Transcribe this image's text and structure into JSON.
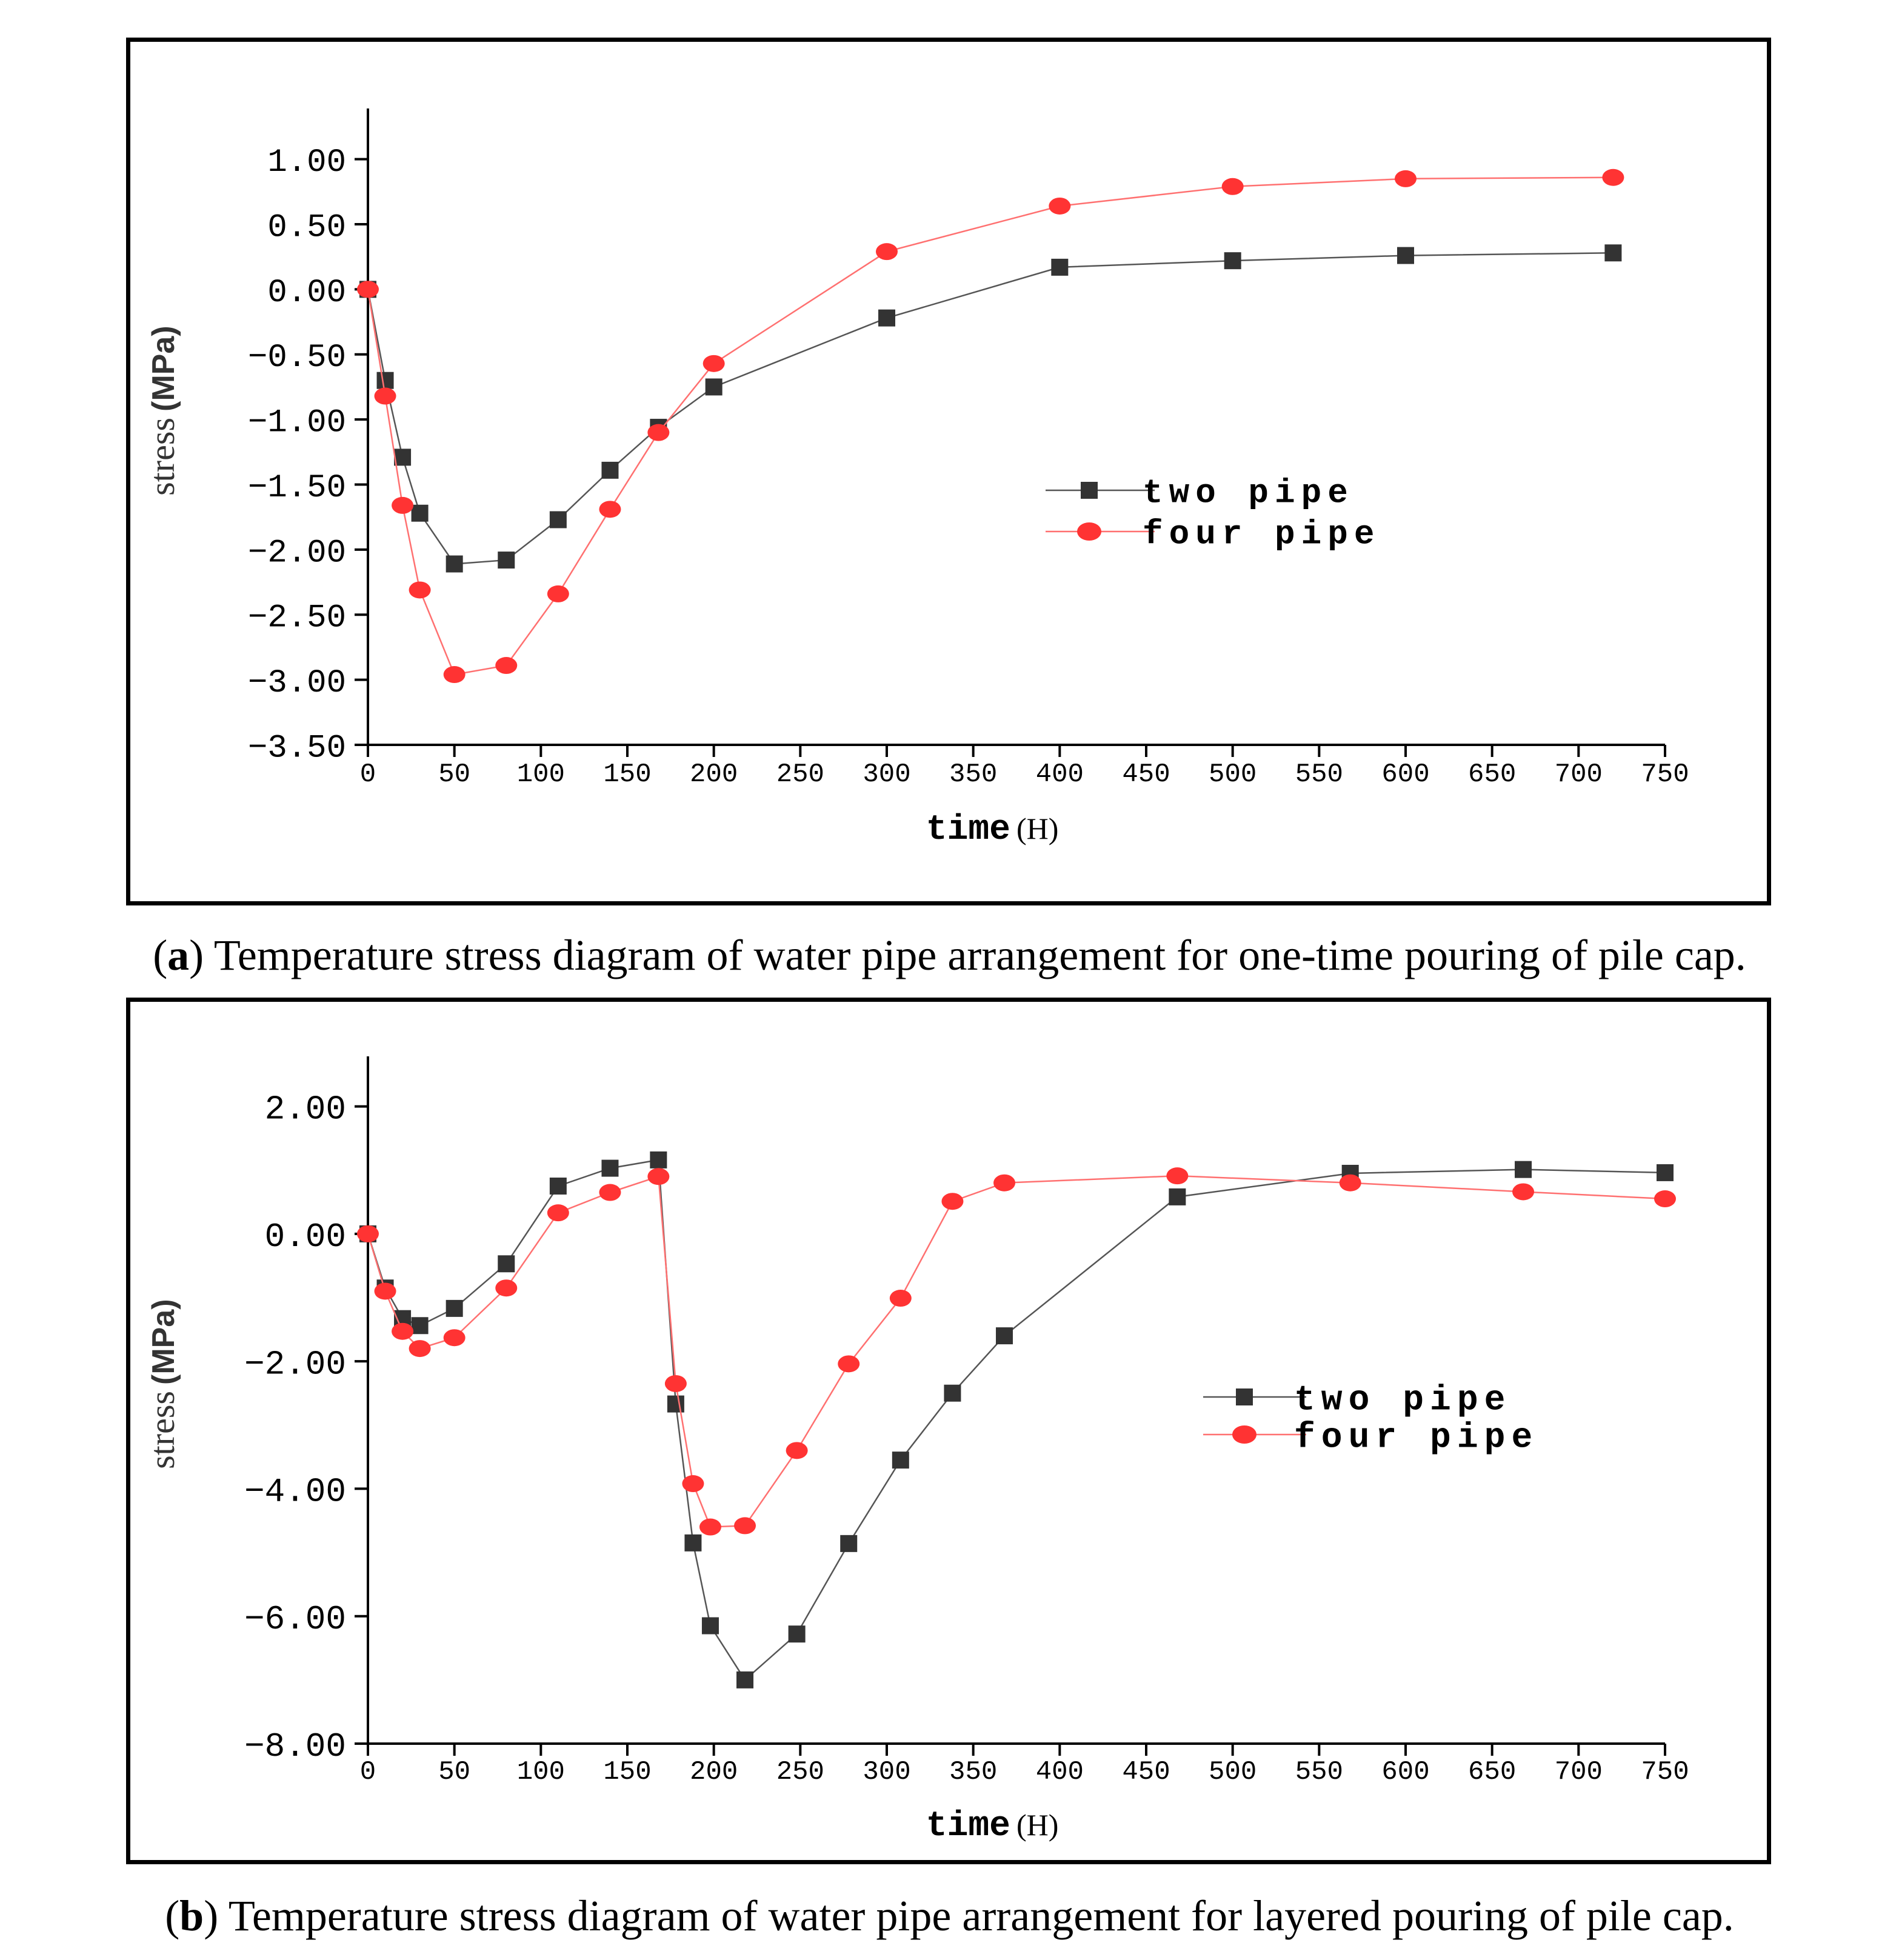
{
  "chart_data": [
    {
      "id": "a",
      "type": "line",
      "caption_label": "a",
      "caption_text": "Temperature stress diagram of water pipe arrangement for one-time pouring of pile cap.",
      "xlabel": "time",
      "xunit": "(H)",
      "ylabel": "stress",
      "yunit": "(MPa)",
      "xlim": [
        0,
        750
      ],
      "ylim": [
        -3.5,
        1.25
      ],
      "xticks": [
        0,
        50,
        100,
        150,
        200,
        250,
        300,
        350,
        400,
        450,
        500,
        550,
        600,
        650,
        700,
        750
      ],
      "yticks": [
        -3.5,
        -3.0,
        -2.5,
        -2.0,
        -1.5,
        -1.0,
        -0.5,
        0.0,
        0.5,
        1.0
      ],
      "xtick_labels": [
        "0",
        "50",
        "100",
        "150",
        "200",
        "250",
        "300",
        "350",
        "400",
        "450",
        "500",
        "550",
        "600",
        "650",
        "700",
        "750"
      ],
      "ytick_labels": [
        "−3.50",
        "−3.00",
        "−2.50",
        "−2.00",
        "−1.50",
        "−1.00",
        "−0.50",
        "0.00",
        "0.50",
        "1.00"
      ],
      "legend_position": "center-right",
      "series": [
        {
          "name": "two pipe",
          "color": "#555555",
          "marker_color": "#333333",
          "marker": "square",
          "x": [
            0,
            10,
            20,
            30,
            50,
            80,
            110,
            140,
            168,
            200,
            300,
            400,
            500,
            600,
            720
          ],
          "y": [
            0.0,
            -0.7,
            -1.29,
            -1.72,
            -2.11,
            -2.08,
            -1.77,
            -1.39,
            -1.06,
            -0.75,
            -0.22,
            0.17,
            0.22,
            0.26,
            0.28
          ]
        },
        {
          "name": "four pipe",
          "color": "#ff7070",
          "marker_color": "#ff3333",
          "marker": "circle",
          "x": [
            0,
            10,
            20,
            30,
            50,
            80,
            110,
            140,
            168,
            200,
            300,
            400,
            500,
            600,
            720
          ],
          "y": [
            0.0,
            -0.82,
            -1.66,
            -2.31,
            -2.96,
            -2.89,
            -2.34,
            -1.69,
            -1.1,
            -0.57,
            0.29,
            0.64,
            0.79,
            0.85,
            0.86
          ]
        }
      ]
    },
    {
      "id": "b",
      "type": "line",
      "caption_label": "b",
      "caption_text": "Temperature stress diagram of water pipe arrangement for layered pouring of pile cap.",
      "xlabel": "time",
      "xunit": "(H)",
      "ylabel": "stress",
      "yunit": "(MPa)",
      "xlim": [
        0,
        750
      ],
      "ylim": [
        -8.0,
        2.5
      ],
      "xticks": [
        0,
        50,
        100,
        150,
        200,
        250,
        300,
        350,
        400,
        450,
        500,
        550,
        600,
        650,
        700,
        750
      ],
      "yticks": [
        -8.0,
        -6.0,
        -4.0,
        -2.0,
        0.0,
        2.0
      ],
      "xtick_labels": [
        "0",
        "50",
        "100",
        "150",
        "200",
        "250",
        "300",
        "350",
        "400",
        "450",
        "500",
        "550",
        "600",
        "650",
        "700",
        "750"
      ],
      "ytick_labels": [
        "−8.00",
        "−6.00",
        "−4.00",
        "−2.00",
        "0.00",
        "2.00"
      ],
      "legend_position": "center-right",
      "series": [
        {
          "name": "two pipe",
          "color": "#555555",
          "marker_color": "#333333",
          "marker": "square",
          "x": [
            0,
            10,
            20,
            30,
            50,
            80,
            110,
            140,
            168,
            178,
            188,
            198,
            218,
            248,
            278,
            308,
            338,
            368,
            468,
            568,
            668,
            750
          ],
          "y": [
            0.0,
            -0.85,
            -1.33,
            -1.44,
            -1.17,
            -0.47,
            0.75,
            1.03,
            1.16,
            -2.67,
            -4.85,
            -6.15,
            -7.0,
            -6.28,
            -4.86,
            -3.55,
            -2.5,
            -1.6,
            0.58,
            0.95,
            1.01,
            0.96
          ]
        },
        {
          "name": "four pipe",
          "color": "#ff7070",
          "marker_color": "#ff3333",
          "marker": "circle",
          "x": [
            0,
            10,
            20,
            30,
            50,
            80,
            110,
            140,
            168,
            178,
            188,
            198,
            218,
            248,
            278,
            308,
            338,
            368,
            468,
            568,
            668,
            750
          ],
          "y": [
            0.0,
            -0.9,
            -1.53,
            -1.8,
            -1.63,
            -0.85,
            0.33,
            0.65,
            0.9,
            -2.35,
            -3.92,
            -4.6,
            -4.58,
            -3.4,
            -2.04,
            -1.01,
            0.51,
            0.8,
            0.91,
            0.8,
            0.66,
            0.55
          ]
        }
      ]
    }
  ]
}
